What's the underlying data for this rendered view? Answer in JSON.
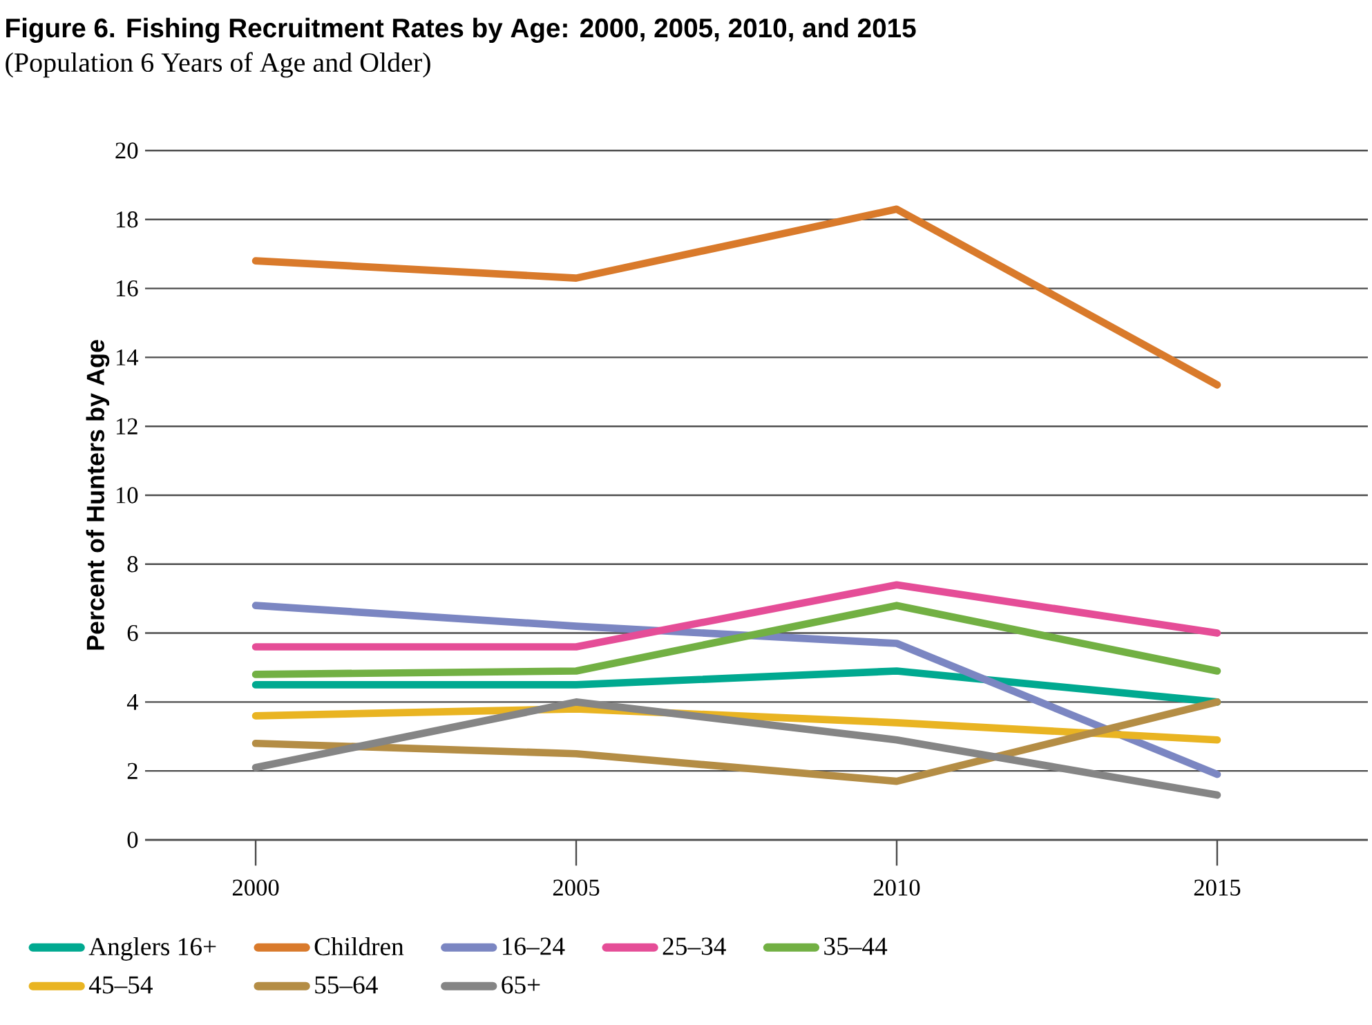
{
  "chart_data": {
    "type": "line",
    "title": "Figure 6. Fishing Recruitment Rates by Age: 2000, 2005, 2010, and 2015",
    "subtitle": "(Population 6 Years of Age and Older)",
    "ylabel": "Percent of Hunters by Age",
    "categories": [
      "2000",
      "2005",
      "2010",
      "2015"
    ],
    "series": [
      {
        "name": "Anglers 16+",
        "color": "#00a990",
        "values": [
          4.5,
          4.5,
          4.9,
          4.0
        ]
      },
      {
        "name": "Children",
        "color": "#d97a2b",
        "values": [
          16.8,
          16.3,
          18.3,
          13.2
        ]
      },
      {
        "name": "16–24",
        "color": "#7b86c2",
        "values": [
          6.8,
          6.2,
          5.7,
          1.9
        ]
      },
      {
        "name": "25–34",
        "color": "#e54d97",
        "values": [
          5.6,
          5.6,
          7.4,
          6.0
        ]
      },
      {
        "name": "35–44",
        "color": "#72b043",
        "values": [
          4.8,
          4.9,
          6.8,
          4.9
        ]
      },
      {
        "name": "45–54",
        "color": "#e9b422",
        "values": [
          3.6,
          3.8,
          3.4,
          2.9
        ]
      },
      {
        "name": "55–64",
        "color": "#b48d45",
        "values": [
          2.8,
          2.5,
          1.7,
          4.0
        ]
      },
      {
        "name": "65+",
        "color": "#858585",
        "values": [
          2.1,
          4.0,
          2.9,
          1.3
        ]
      }
    ],
    "ylim": [
      0,
      20
    ],
    "yticks": [
      0,
      2,
      4,
      6,
      8,
      10,
      12,
      14,
      16,
      18,
      20
    ],
    "grid": "y",
    "legend": "bottom",
    "marker": "none",
    "line_style": "solid"
  }
}
